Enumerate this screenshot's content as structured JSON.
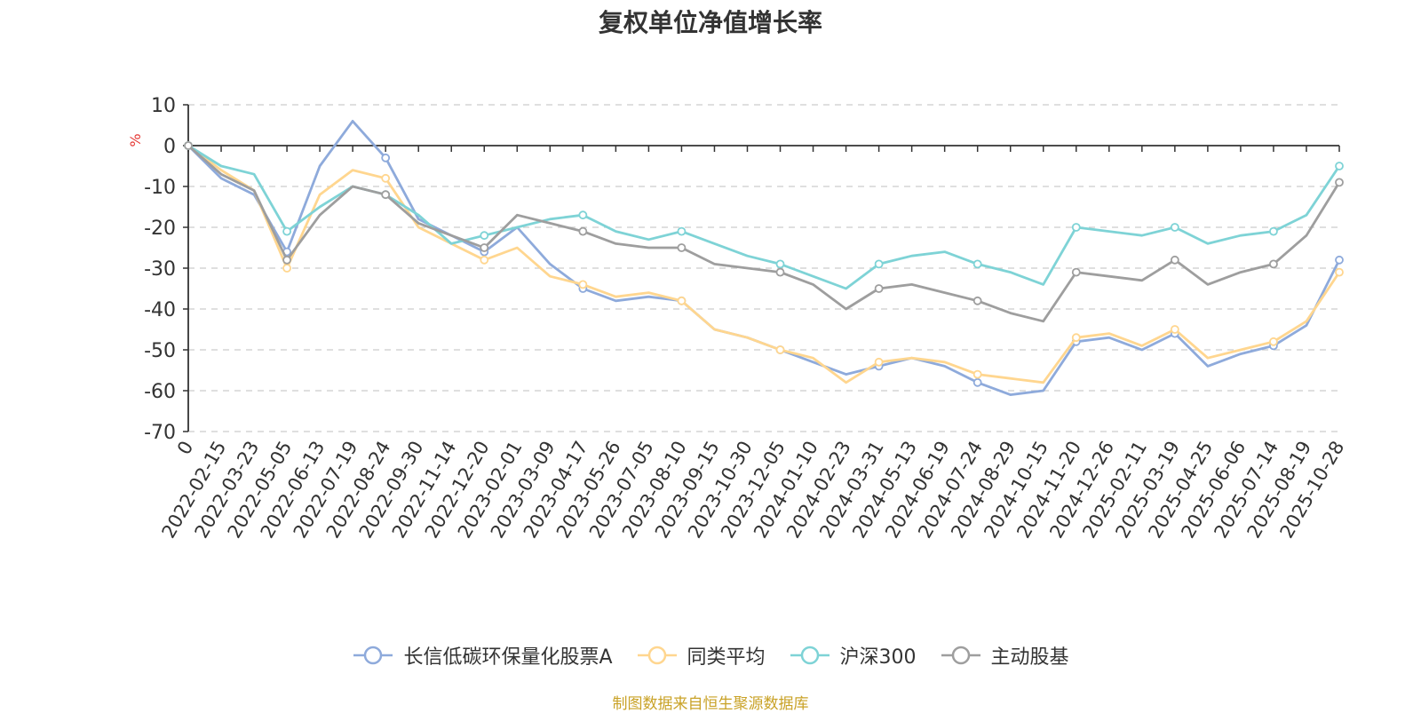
{
  "chart_data": {
    "type": "line",
    "title": "复权单位净值增长率",
    "ylabel": "%",
    "xlabel": "",
    "ylim": [
      -70,
      10
    ],
    "yticks": [
      10,
      0,
      -10,
      -20,
      -30,
      -40,
      -50,
      -60,
      -70
    ],
    "categories": [
      "0",
      "2022-02-15",
      "2022-03-23",
      "2022-05-05",
      "2022-06-13",
      "2022-07-19",
      "2022-08-24",
      "2022-09-30",
      "2022-11-14",
      "2022-12-20",
      "2023-02-01",
      "2023-03-09",
      "2023-04-17",
      "2023-05-26",
      "2023-07-05",
      "2023-08-10",
      "2023-09-15",
      "2023-10-30",
      "2023-12-05",
      "2024-01-10",
      "2024-02-23",
      "2024-03-31",
      "2024-05-13",
      "2024-06-19",
      "2024-07-24",
      "2024-08-29",
      "2024-10-15",
      "2024-11-20",
      "2024-12-26",
      "2025-02-11",
      "2025-03-19",
      "2025-04-25",
      "2025-06-06",
      "2025-07-14",
      "2025-08-19",
      "2025-10-28"
    ],
    "series": [
      {
        "name": "长信低碳环保量化股票A",
        "color": "#8eaadb",
        "values": [
          0,
          -8,
          -12,
          -26,
          -5,
          6,
          -3,
          -18,
          -22,
          -26,
          -20,
          -29,
          -35,
          -38,
          -37,
          -38,
          -45,
          -47,
          -50,
          -53,
          -56,
          -54,
          -52,
          -54,
          -58,
          -61,
          -60,
          -48,
          -47,
          -50,
          -46,
          -54,
          -51,
          -49,
          -44,
          -28
        ]
      },
      {
        "name": "同类平均",
        "color": "#ffd68f",
        "values": [
          0,
          -6,
          -11,
          -30,
          -12,
          -6,
          -8,
          -20,
          -24,
          -28,
          -25,
          -32,
          -34,
          -37,
          -36,
          -38,
          -45,
          -47,
          -50,
          -52,
          -58,
          -53,
          -52,
          -53,
          -56,
          -57,
          -58,
          -47,
          -46,
          -49,
          -45,
          -52,
          -50,
          -48,
          -43,
          -31
        ]
      },
      {
        "name": "沪深300",
        "color": "#7ed3d6",
        "values": [
          0,
          -5,
          -7,
          -21,
          -15,
          -10,
          -12,
          -17,
          -24,
          -22,
          -20,
          -18,
          -17,
          -21,
          -23,
          -21,
          -24,
          -27,
          -29,
          -32,
          -35,
          -29,
          -27,
          -26,
          -29,
          -31,
          -34,
          -20,
          -21,
          -22,
          -20,
          -24,
          -22,
          -21,
          -17,
          -5
        ]
      },
      {
        "name": "主动股基",
        "color": "#9e9e9e",
        "values": [
          0,
          -7,
          -11,
          -28,
          -17,
          -10,
          -12,
          -19,
          -22,
          -25,
          -17,
          -19,
          -21,
          -24,
          -25,
          -25,
          -29,
          -30,
          -31,
          -34,
          -40,
          -35,
          -34,
          -36,
          -38,
          -41,
          -43,
          -31,
          -32,
          -33,
          -28,
          -34,
          -31,
          -29,
          -22,
          -9
        ]
      }
    ],
    "legend_position": "bottom-center",
    "grid": true
  },
  "source_note": "制图数据来自恒生聚源数据库"
}
